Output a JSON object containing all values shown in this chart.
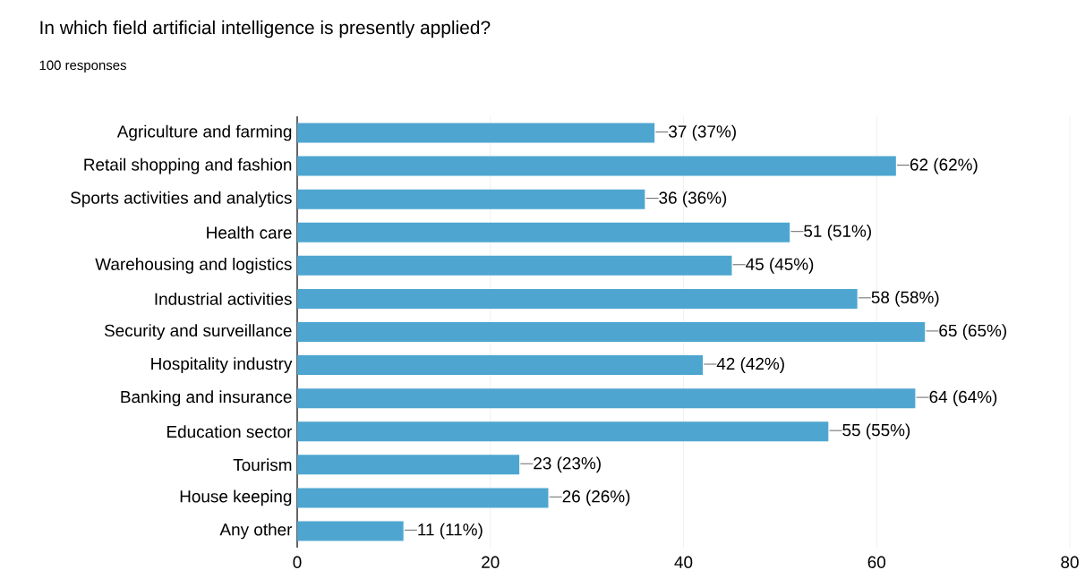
{
  "chart_data": {
    "type": "bar",
    "orientation": "horizontal",
    "title": "In which field artificial intelligence is presently applied?",
    "subtitle": "100 responses",
    "categories": [
      "Agriculture and farming",
      "Retail shopping and fashion",
      "Sports activities and analytics",
      "Health care",
      "Warehousing and logistics",
      "Industrial activities",
      "Security and surveillance",
      "Hospitality industry",
      "Banking and insurance",
      "Education sector",
      "Tourism",
      "House keeping",
      "Any other"
    ],
    "values": [
      37,
      62,
      36,
      51,
      45,
      58,
      65,
      42,
      64,
      55,
      23,
      26,
      11
    ],
    "value_labels": [
      "37 (37%)",
      "62 (62%)",
      "36 (36%)",
      "51 (51%)",
      "45 (45%)",
      "58 (58%)",
      "65 (65%)",
      "42 (42%)",
      "64 (64%)",
      "55 (55%)",
      "23 (23%)",
      "26 (26%)",
      "11 (11%)"
    ],
    "color": "#4ea6d0",
    "xlim": [
      0,
      80
    ],
    "xticks": [
      0,
      20,
      40,
      60,
      80
    ],
    "grid": "x"
  }
}
